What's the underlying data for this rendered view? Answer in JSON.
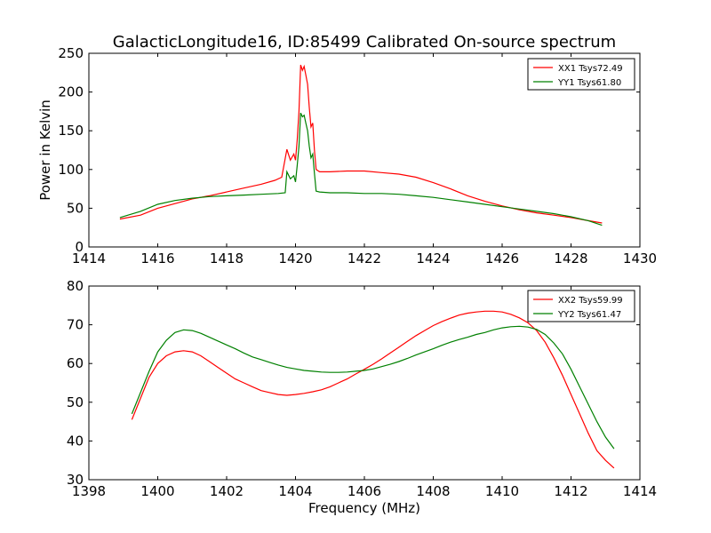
{
  "chart_data": [
    {
      "type": "line",
      "title": "GalacticLongitude16, ID:85499 Calibrated On-source spectrum",
      "xlabel": "",
      "ylabel": "Power in Kelvin",
      "xlim": [
        1414,
        1430
      ],
      "ylim": [
        0,
        250
      ],
      "xticks": [
        "1414",
        "1416",
        "1418",
        "1420",
        "1422",
        "1424",
        "1426",
        "1428",
        "1430"
      ],
      "yticks": [
        "0",
        "50",
        "100",
        "150",
        "200",
        "250"
      ],
      "grid": false,
      "legend_position": "top-right",
      "series": [
        {
          "name": "XX1 Tsys72.49",
          "color": "#ff0000",
          "x": [
            1414.9,
            1415.5,
            1416.0,
            1416.5,
            1417.0,
            1417.5,
            1418.0,
            1418.5,
            1419.0,
            1419.4,
            1419.6,
            1419.75,
            1419.85,
            1419.95,
            1420.0,
            1420.05,
            1420.1,
            1420.15,
            1420.2,
            1420.25,
            1420.3,
            1420.35,
            1420.4,
            1420.45,
            1420.5,
            1420.55,
            1420.6,
            1420.7,
            1421.0,
            1421.5,
            1422.0,
            1422.5,
            1423.0,
            1423.5,
            1424.0,
            1424.5,
            1425.0,
            1425.5,
            1426.0,
            1426.5,
            1427.0,
            1427.5,
            1428.0,
            1428.5,
            1428.9
          ],
          "values": [
            36,
            41,
            50,
            56,
            62,
            66,
            71,
            76,
            81,
            86,
            90,
            126,
            112,
            120,
            112,
            138,
            175,
            235,
            228,
            233,
            222,
            210,
            180,
            155,
            160,
            125,
            100,
            97,
            97,
            98,
            98,
            96,
            94,
            90,
            83,
            75,
            66,
            59,
            53,
            48,
            44,
            41,
            38,
            34,
            31
          ]
        },
        {
          "name": "YY1 Tsys61.80",
          "color": "#008000",
          "x": [
            1414.9,
            1415.5,
            1416.0,
            1416.5,
            1417.0,
            1417.5,
            1418.0,
            1418.5,
            1419.0,
            1419.5,
            1419.7,
            1419.75,
            1419.85,
            1419.95,
            1420.0,
            1420.05,
            1420.1,
            1420.15,
            1420.2,
            1420.25,
            1420.3,
            1420.35,
            1420.4,
            1420.45,
            1420.5,
            1420.55,
            1420.6,
            1420.7,
            1421.0,
            1421.5,
            1422.0,
            1422.5,
            1423.0,
            1423.5,
            1424.0,
            1424.5,
            1425.0,
            1425.5,
            1426.0,
            1426.5,
            1427.0,
            1427.5,
            1428.0,
            1428.5,
            1428.9
          ],
          "values": [
            38,
            46,
            55,
            60,
            63,
            65,
            66,
            67,
            68,
            69,
            70,
            97,
            88,
            92,
            84,
            105,
            130,
            173,
            168,
            170,
            160,
            150,
            130,
            115,
            120,
            95,
            72,
            71,
            70,
            70,
            69,
            69,
            68,
            66,
            64,
            61,
            58,
            55,
            52,
            49,
            46,
            43,
            39,
            34,
            28
          ]
        }
      ]
    },
    {
      "type": "line",
      "title": "",
      "xlabel": "Frequency (MHz)",
      "ylabel": "",
      "xlim": [
        1398,
        1414
      ],
      "ylim": [
        30,
        80
      ],
      "xticks": [
        "1398",
        "1400",
        "1402",
        "1404",
        "1406",
        "1408",
        "1410",
        "1412",
        "1414"
      ],
      "yticks": [
        "30",
        "40",
        "50",
        "60",
        "70",
        "80"
      ],
      "grid": false,
      "legend_position": "top-right",
      "series": [
        {
          "name": "XX2 Tsys59.99",
          "color": "#ff0000",
          "x": [
            1399.25,
            1399.5,
            1399.75,
            1400.0,
            1400.25,
            1400.5,
            1400.75,
            1401.0,
            1401.25,
            1401.5,
            1401.75,
            1402.0,
            1402.25,
            1402.5,
            1402.75,
            1403.0,
            1403.25,
            1403.5,
            1403.75,
            1404.0,
            1404.25,
            1404.5,
            1404.75,
            1405.0,
            1405.25,
            1405.5,
            1405.75,
            1406.0,
            1406.25,
            1406.5,
            1406.75,
            1407.0,
            1407.25,
            1407.5,
            1407.75,
            1408.0,
            1408.25,
            1408.5,
            1408.75,
            1409.0,
            1409.25,
            1409.5,
            1409.75,
            1410.0,
            1410.25,
            1410.5,
            1410.75,
            1411.0,
            1411.25,
            1411.5,
            1411.75,
            1412.0,
            1412.25,
            1412.5,
            1412.75,
            1413.0,
            1413.25
          ],
          "values": [
            45.5,
            51,
            56.5,
            60,
            62,
            63,
            63.3,
            63,
            62,
            60.5,
            59,
            57.5,
            56,
            55,
            54,
            53,
            52.5,
            52,
            51.8,
            52,
            52.3,
            52.7,
            53.2,
            54,
            55,
            56,
            57.3,
            58.5,
            59.8,
            61.2,
            62.7,
            64.2,
            65.7,
            67.2,
            68.5,
            69.8,
            70.8,
            71.7,
            72.5,
            73,
            73.3,
            73.5,
            73.5,
            73.3,
            72.7,
            71.8,
            70.5,
            68.5,
            65.5,
            61.5,
            57,
            52,
            47,
            42,
            37.5,
            35,
            33
          ]
        },
        {
          "name": "YY2 Tsys61.47",
          "color": "#008000",
          "x": [
            1399.25,
            1399.5,
            1399.75,
            1400.0,
            1400.25,
            1400.5,
            1400.75,
            1401.0,
            1401.25,
            1401.5,
            1401.75,
            1402.0,
            1402.25,
            1402.5,
            1402.75,
            1403.0,
            1403.25,
            1403.5,
            1403.75,
            1404.0,
            1404.25,
            1404.5,
            1404.75,
            1405.0,
            1405.25,
            1405.5,
            1405.75,
            1406.0,
            1406.25,
            1406.5,
            1406.75,
            1407.0,
            1407.25,
            1407.5,
            1407.75,
            1408.0,
            1408.25,
            1408.5,
            1408.75,
            1409.0,
            1409.25,
            1409.5,
            1409.75,
            1410.0,
            1410.25,
            1410.5,
            1410.75,
            1411.0,
            1411.25,
            1411.5,
            1411.75,
            1412.0,
            1412.25,
            1412.5,
            1412.75,
            1413.0,
            1413.25
          ],
          "values": [
            47,
            52.5,
            58,
            63,
            66,
            68,
            68.7,
            68.5,
            67.8,
            66.8,
            65.8,
            64.8,
            63.8,
            62.7,
            61.7,
            61,
            60.3,
            59.6,
            59,
            58.6,
            58.2,
            58,
            57.8,
            57.7,
            57.7,
            57.8,
            58,
            58.2,
            58.6,
            59.2,
            59.8,
            60.5,
            61.3,
            62.2,
            63,
            63.8,
            64.7,
            65.5,
            66.2,
            66.8,
            67.5,
            68,
            68.7,
            69.2,
            69.5,
            69.6,
            69.4,
            68.8,
            67.5,
            65.3,
            62.5,
            58.5,
            54,
            49.5,
            45,
            41,
            38
          ]
        }
      ]
    }
  ]
}
